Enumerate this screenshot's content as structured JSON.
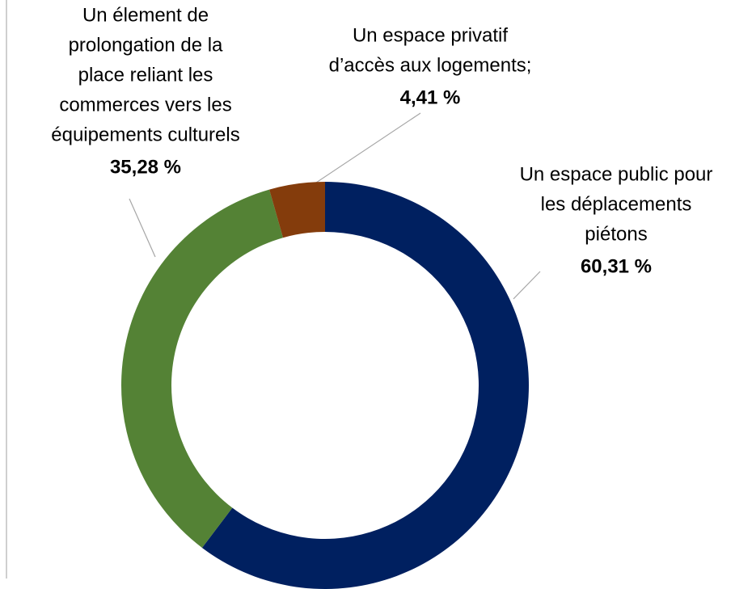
{
  "chart_data": {
    "type": "donut",
    "categories": [
      [
        "Un espace public pour",
        "les déplacements",
        "piétons"
      ],
      [
        "Un élement de",
        "prolongation de la",
        "place reliant les",
        "commerces vers les",
        "équipements culturels"
      ],
      [
        "Un espace privatif",
        "d’accès aux logements;"
      ]
    ],
    "values": [
      60.31,
      35.28,
      4.41
    ],
    "value_labels": [
      "60,31 %",
      "35,28 %",
      "4,41 %"
    ],
    "colors": [
      "#002060",
      "#548235",
      "#843c0c"
    ]
  }
}
